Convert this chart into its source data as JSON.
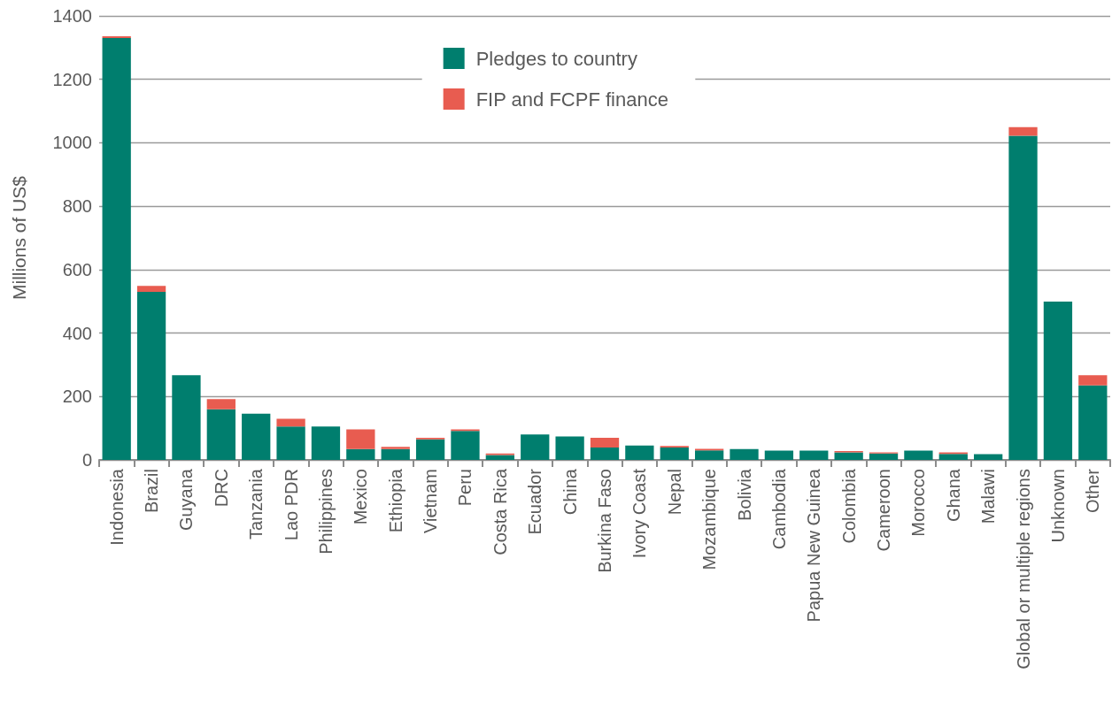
{
  "chart_data": {
    "type": "bar",
    "stacked": true,
    "ylabel": "Millions of US$",
    "categories": [
      "Indonesia",
      "Brazil",
      "Guyana",
      "DRC",
      "Tanzania",
      "Lao PDR",
      "Philippines",
      "Mexico",
      "Ethiopia",
      "Vietnam",
      "Peru",
      "Costa Rica",
      "Ecuador",
      "China",
      "Burkina Faso",
      "Ivory Coast",
      "Nepal",
      "Mozambique",
      "Bolivia",
      "Cambodia",
      "Papua New Guinea",
      "Colombia",
      "Cameroon",
      "Morocco",
      "Ghana",
      "Malawi",
      "Global or multiple regions",
      "Unknown",
      "Other"
    ],
    "series": [
      {
        "name": "Pledges to country",
        "color": "#007e6e",
        "values": [
          1330,
          530,
          267,
          160,
          146,
          105,
          105,
          34,
          34,
          65,
          91,
          15,
          80,
          74,
          39,
          45,
          39,
          30,
          34,
          29,
          29,
          24,
          20,
          29,
          19,
          18,
          1022,
          499,
          235
        ]
      },
      {
        "name": "FIP and FCPF finance",
        "color": "#e85c50",
        "values": [
          6,
          19,
          0,
          32,
          0,
          25,
          0,
          62,
          7,
          5,
          5,
          5,
          0,
          0,
          31,
          0,
          5,
          5,
          0,
          0,
          0,
          4,
          4,
          0,
          5,
          0,
          27,
          0,
          32
        ]
      }
    ],
    "ylim": [
      0,
      1400
    ],
    "yticks": [
      0,
      200,
      400,
      600,
      800,
      1000,
      1200,
      1400
    ],
    "grid": "y",
    "legend": "top"
  }
}
